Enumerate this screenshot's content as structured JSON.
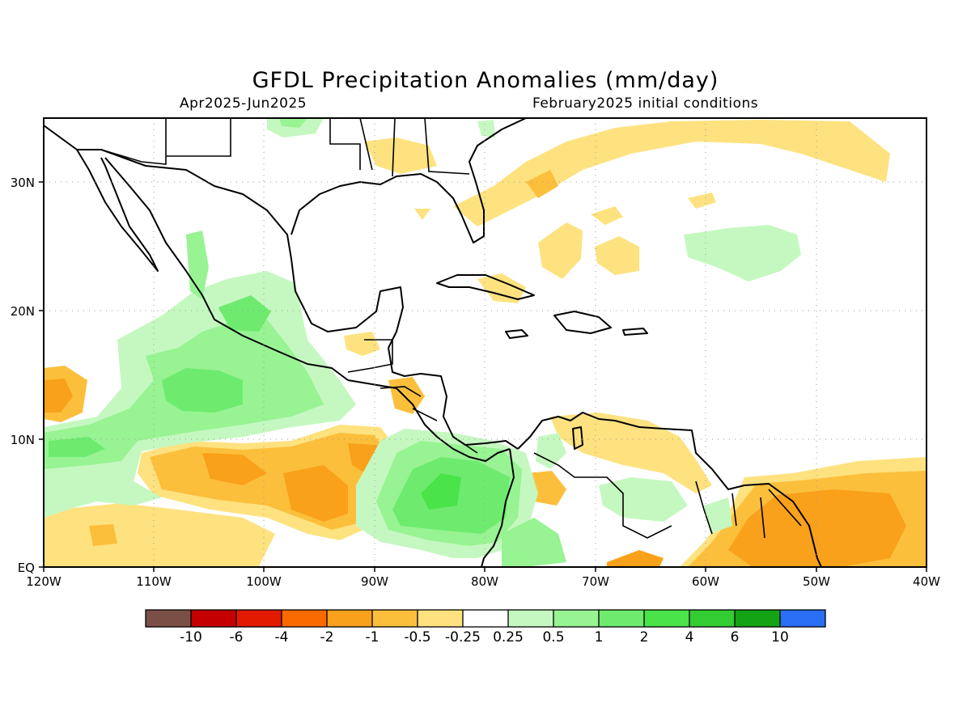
{
  "title": "GFDL Precipitation Anomalies (mm/day)",
  "subtitle_left": "Apr2025-Jun2025",
  "subtitle_right": "February2025 initial conditions",
  "axes": {
    "x_ticks": [
      "120W",
      "110W",
      "100W",
      "90W",
      "80W",
      "70W",
      "60W",
      "50W",
      "40W"
    ],
    "y_ticks": [
      "EQ",
      "10N",
      "20N",
      "30N"
    ],
    "lon_range": [
      -120,
      -40
    ],
    "lat_range": [
      0,
      35
    ],
    "grid": "dotted"
  },
  "colorbar": {
    "labels": [
      "-10",
      "-6",
      "-4",
      "-2",
      "-1",
      "-0.5",
      "-0.25",
      "0.25",
      "0.5",
      "1",
      "2",
      "4",
      "6",
      "10"
    ],
    "colors": [
      "#7a5046",
      "#c40000",
      "#e21a00",
      "#fb6a00",
      "#f9a11a",
      "#fcbf3c",
      "#fde27f",
      "#ffffff",
      "#c5f8c0",
      "#98f393",
      "#6eeb6e",
      "#4ae34a",
      "#33cd33",
      "#14a314",
      "#2a6ef5"
    ]
  },
  "anomaly_regions": [
    {
      "name": "east-pacific-dry-belt",
      "level": "-1"
    },
    {
      "name": "east-pacific-wet-belt",
      "level": "1"
    },
    {
      "name": "costa-rica-panama-wet",
      "level": "2"
    },
    {
      "name": "guianas-atlantic-dry",
      "level": "-1"
    },
    {
      "name": "western-atlantic-dry",
      "level": "-0.5"
    },
    {
      "name": "central-atlantic-wet",
      "level": "0.25"
    }
  ]
}
